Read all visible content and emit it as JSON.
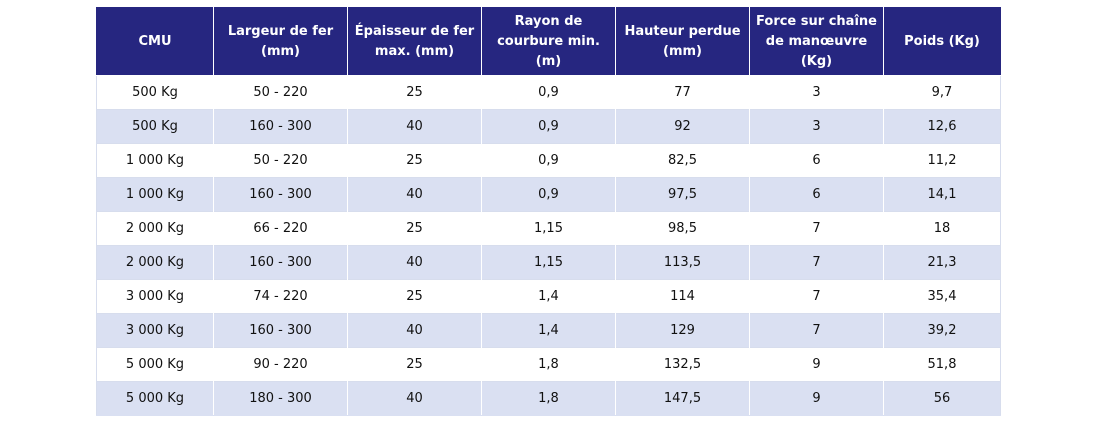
{
  "table": {
    "headers": [
      "CMU",
      "Largeur de fer\n(mm)",
      "Épaisseur de fer\nmax. (mm)",
      "Rayon de\ncourbure min. (m)",
      "Hauteur perdue\n(mm)",
      "Force sur chaîne\nde manœuvre (Kg)",
      "Poids (Kg)"
    ],
    "rows": [
      [
        "500 Kg",
        "50 - 220",
        "25",
        "0,9",
        "77",
        "3",
        "9,7"
      ],
      [
        "500 Kg",
        "160 - 300",
        "40",
        "0,9",
        "92",
        "3",
        "12,6"
      ],
      [
        "1 000 Kg",
        "50 - 220",
        "25",
        "0,9",
        "82,5",
        "6",
        "11,2"
      ],
      [
        "1 000 Kg",
        "160 - 300",
        "40",
        "0,9",
        "97,5",
        "6",
        "14,1"
      ],
      [
        "2 000 Kg",
        "66 - 220",
        "25",
        "1,15",
        "98,5",
        "7",
        "18"
      ],
      [
        "2 000 Kg",
        "160 - 300",
        "40",
        "1,15",
        "113,5",
        "7",
        "21,3"
      ],
      [
        "3 000 Kg",
        "74 - 220",
        "25",
        "1,4",
        "114",
        "7",
        "35,4"
      ],
      [
        "3 000 Kg",
        "160 - 300",
        "40",
        "1,4",
        "129",
        "7",
        "39,2"
      ],
      [
        "5 000 Kg",
        "90 - 220",
        "25",
        "1,8",
        "132,5",
        "9",
        "51,8"
      ],
      [
        "5 000 Kg",
        "180 - 300",
        "40",
        "1,8",
        "147,5",
        "9",
        "56"
      ]
    ]
  },
  "colors": {
    "header_bg": "#262680",
    "header_text": "#ffffff",
    "row_alt_bg": "#dae0f2",
    "row_bg": "#ffffff"
  }
}
